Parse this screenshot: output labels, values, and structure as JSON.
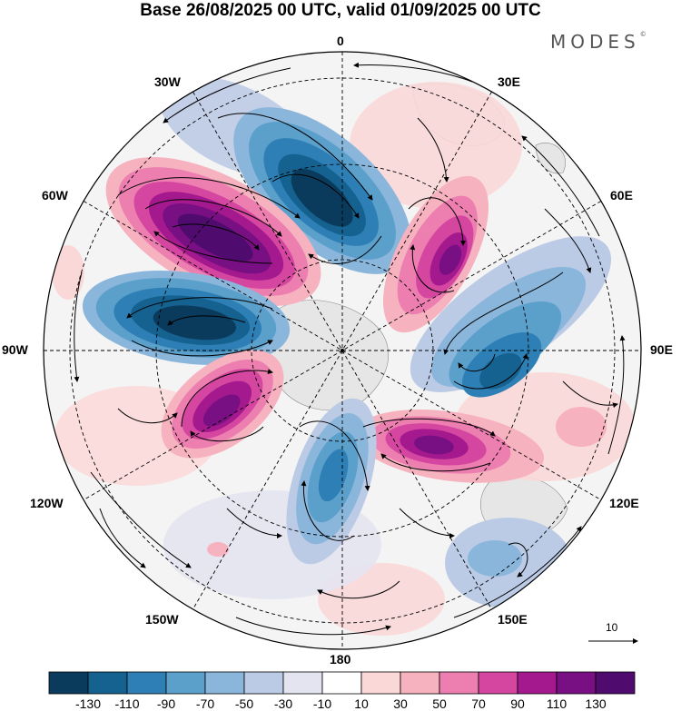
{
  "title": "Base 26/08/2025 00 UTC, valid 01/09/2025 00 UTC",
  "logo": "MODES",
  "logo_mark": "©",
  "map": {
    "projection": "south-polar-stereographic",
    "longitude_labels": {
      "lon_0": "0",
      "lon_30e": "30E",
      "lon_60e": "60E",
      "lon_90e": "90E",
      "lon_120e": "120E",
      "lon_150e": "150E",
      "lon_180": "180",
      "lon_150w": "150W",
      "lon_120w": "120W",
      "lon_90w": "90W",
      "lon_60w": "60W",
      "lon_30w": "30W"
    },
    "reference_vector_label": "10"
  },
  "colorbar": {
    "ticks": [
      "-130",
      "-110",
      "-90",
      "-70",
      "-50",
      "-30",
      "-10",
      "10",
      "30",
      "50",
      "70",
      "90",
      "110",
      "130"
    ],
    "colors": [
      "#0a3b5c",
      "#15618f",
      "#2d7fb5",
      "#5b9fcb",
      "#8bb6db",
      "#bccbe5",
      "#e4e4f1",
      "#ffffff",
      "#fbd8d8",
      "#f6b2bf",
      "#ec7fb0",
      "#d546a0",
      "#a4198d",
      "#780f82",
      "#4f0b6e"
    ]
  }
}
